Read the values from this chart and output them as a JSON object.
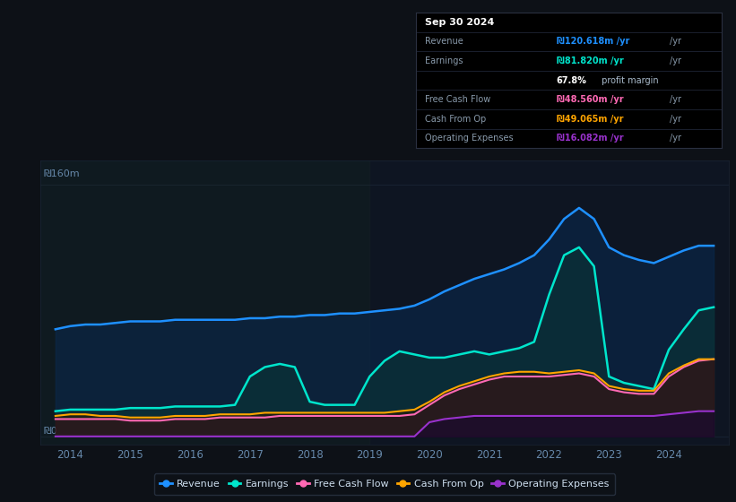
{
  "bg_color": "#0d1117",
  "plot_bg_color": "#0d1520",
  "ylabel_top": "₪160m",
  "ylabel_bottom": "₪0",
  "revenue_color": "#1e90ff",
  "revenue_fill": "#0a2a50",
  "earnings_color": "#00e5cc",
  "earnings_fill": "#0a3535",
  "free_cash_flow_color": "#ff69b4",
  "free_cash_flow_fill": "#3a1025",
  "cash_from_op_color": "#ffa500",
  "cash_from_op_fill": "#2a1a00",
  "op_exp_color": "#9932cc",
  "op_exp_fill": "#1a0830",
  "legend_bg": "#0d1117",
  "legend_border": "#2a3545",
  "xlim_left": 2013.5,
  "xlim_right": 2025.0,
  "ylim_bottom": -5,
  "ylim_top": 175,
  "xticks": [
    2014,
    2015,
    2016,
    2017,
    2018,
    2019,
    2020,
    2021,
    2022,
    2023,
    2024
  ],
  "ytick_top_label": "₪160m",
  "ytick_bottom_label": "₪0",
  "ytick_top_val": 160,
  "ytick_bottom_val": 0,
  "grid_color": "#1a2535",
  "spine_color": "#1a2535",
  "tick_color": "#6688aa",
  "info_title": "Sep 30 2024",
  "info_rows": [
    {
      "label": "Revenue",
      "value": "₪120.618m /yr",
      "color": "#1e90ff"
    },
    {
      "label": "Earnings",
      "value": "₪81.820m /yr",
      "color": "#00e5cc"
    },
    {
      "label": "",
      "pct": "67.8%",
      "suffix": " profit margin",
      "color": "#ffffff"
    },
    {
      "label": "Free Cash Flow",
      "value": "₪48.560m /yr",
      "color": "#ff69b4"
    },
    {
      "label": "Cash From Op",
      "value": "₪49.065m /yr",
      "color": "#ffa500"
    },
    {
      "label": "Operating Expenses",
      "value": "₪16.082m /yr",
      "color": "#9932cc"
    }
  ],
  "legend_items": [
    {
      "label": "Revenue",
      "color": "#1e90ff"
    },
    {
      "label": "Earnings",
      "color": "#00e5cc"
    },
    {
      "label": "Free Cash Flow",
      "color": "#ff69b4"
    },
    {
      "label": "Cash From Op",
      "color": "#ffa500"
    },
    {
      "label": "Operating Expenses",
      "color": "#9932cc"
    }
  ]
}
